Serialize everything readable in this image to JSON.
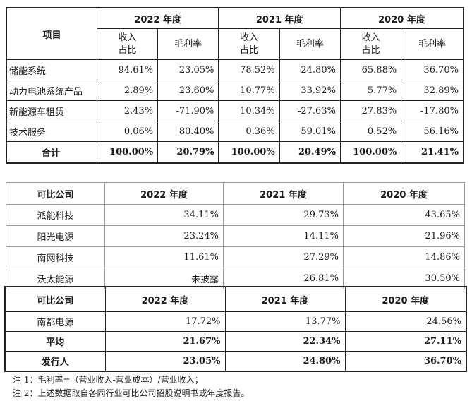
{
  "table1": {
    "project_header": "项目",
    "years": [
      "2022 年度",
      "2021 年度",
      "2020 年度"
    ],
    "sub_revenue": "收入\n占比",
    "sub_margin": "毛利率",
    "rows": [
      {
        "label": "储能系统",
        "values": [
          "94.61%",
          "23.05%",
          "78.52%",
          "24.80%",
          "65.88%",
          "36.70%"
        ]
      },
      {
        "label": "动力电池系统产品",
        "values": [
          "2.89%",
          "23.60%",
          "10.77%",
          "33.92%",
          "5.77%",
          "32.89%"
        ]
      },
      {
        "label": "新能源车租赁",
        "values": [
          "2.43%",
          "-71.90%",
          "10.34%",
          "-27.63%",
          "27.83%",
          "-17.80%"
        ]
      },
      {
        "label": "技术服务",
        "values": [
          "0.06%",
          "80.40%",
          "0.36%",
          "59.01%",
          "0.52%",
          "56.16%"
        ]
      }
    ],
    "total": {
      "label": "合计",
      "values": [
        "100.00%",
        "20.79%",
        "100.00%",
        "20.49%",
        "100.00%",
        "21.41%"
      ]
    }
  },
  "table2": {
    "header": [
      "可比公司",
      "2022 年度",
      "2021 年度",
      "2020 年度"
    ],
    "rows": [
      {
        "label": "派能科技",
        "values": [
          "34.11%",
          "29.73%",
          "43.65%"
        ]
      },
      {
        "label": "阳光电源",
        "values": [
          "23.24%",
          "14.11%",
          "21.96%"
        ]
      },
      {
        "label": "南网科技",
        "values": [
          "11.61%",
          "27.29%",
          "14.86%"
        ]
      },
      {
        "label": "沃太能源",
        "values": [
          "未披露",
          "26.81%",
          "30.50%"
        ]
      }
    ]
  },
  "table3": {
    "header": [
      "可比公司",
      "2022 年度",
      "2021 年度",
      "2020 年度"
    ],
    "rows": [
      {
        "label": "南都电源",
        "values": [
          "17.72%",
          "13.77%",
          "24.56%"
        ]
      }
    ],
    "bold_rows": [
      {
        "label": "平均",
        "values": [
          "21.67%",
          "22.34%",
          "27.11%"
        ]
      },
      {
        "label": "发行人",
        "values": [
          "23.05%",
          "24.80%",
          "36.70%"
        ]
      }
    ]
  },
  "notes": [
    "注 1：毛利率=（营业收入-营业成本）/营业收入；",
    "注 2：上述数据取自各同行业可比公司招股说明书或年度报告。"
  ]
}
